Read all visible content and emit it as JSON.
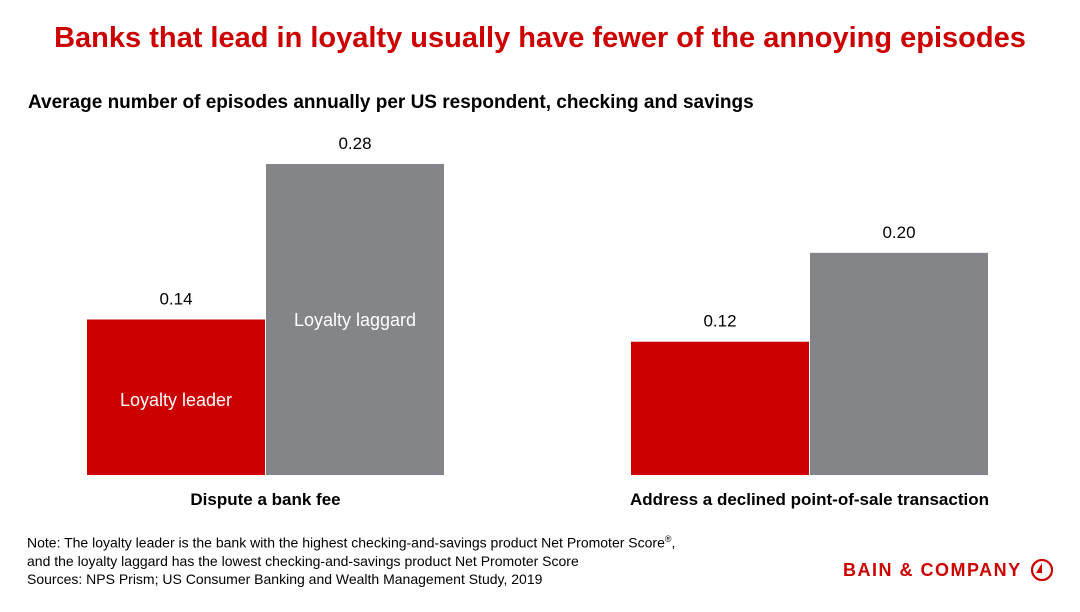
{
  "title": "Banks that lead in loyalty usually have fewer of the annoying episodes",
  "chart_data": {
    "type": "bar",
    "title": "Average number of episodes annually per US respondent, checking and savings",
    "categories": [
      "Dispute a bank fee",
      "Address a declined point-of-sale transaction"
    ],
    "series": [
      {
        "name": "Loyalty leader",
        "color": "#cc0000",
        "values": [
          0.14,
          0.12
        ],
        "labels": [
          "0.14",
          "0.12"
        ]
      },
      {
        "name": "Loyalty laggard",
        "color": "#848589",
        "values": [
          0.28,
          0.2
        ],
        "labels": [
          "0.28",
          "0.20"
        ]
      }
    ],
    "ylim": [
      0,
      0.28
    ],
    "grid": false,
    "legend": "inside bars"
  },
  "note": {
    "line1": "Note: The loyalty leader is the bank with the highest checking-and-savings product Net Promoter Score",
    "line1_mark": "®",
    "line1_end": ",",
    "line2": "and the loyalty laggard has the lowest checking-and-savings product Net Promoter Score",
    "line3": "Sources: NPS Prism; US Consumer Banking and Wealth Management Study, 2019"
  },
  "logo": {
    "text": "BAIN & COMPANY",
    "icon": "bain-logo-circle-icon"
  },
  "colors": {
    "accent": "#cc0000",
    "gray": "#848589"
  }
}
